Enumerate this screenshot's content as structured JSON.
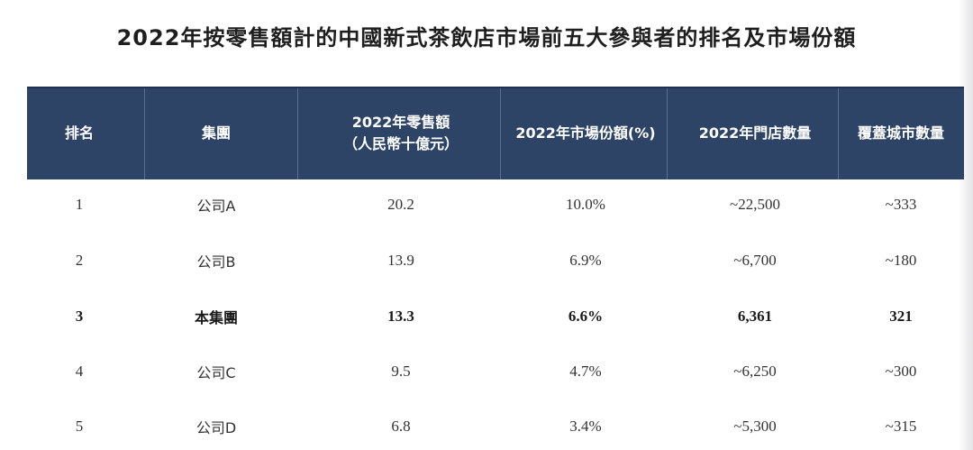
{
  "title": "2022年按零售額計的中國新式茶飲店市場前五大參與者的排名及市場份額",
  "table": {
    "header": [
      {
        "lines": [
          "排名"
        ]
      },
      {
        "lines": [
          "集團"
        ]
      },
      {
        "lines": [
          "2022年零售額",
          "（人民幣十億元）"
        ]
      },
      {
        "lines": [
          "2022年市場份額(%)"
        ]
      },
      {
        "lines": [
          "2022年門店數量"
        ]
      },
      {
        "lines": [
          "覆蓋城市數量"
        ]
      }
    ],
    "rows": [
      {
        "cells": [
          "1",
          "公司A",
          "20.2",
          "10.0%",
          "~22,500",
          "~333"
        ],
        "bold": false
      },
      {
        "cells": [
          "2",
          "公司B",
          "13.9",
          "6.9%",
          "~6,700",
          "~180"
        ],
        "bold": false
      },
      {
        "cells": [
          "3",
          "本集團",
          "13.3",
          "6.6%",
          "6,361",
          "321"
        ],
        "bold": true
      },
      {
        "cells": [
          "4",
          "公司C",
          "9.5",
          "4.7%",
          "~6,250",
          "~300"
        ],
        "bold": false
      },
      {
        "cells": [
          "5",
          "公司D",
          "6.8",
          "3.4%",
          "~5,300",
          "~315"
        ],
        "bold": false
      }
    ]
  }
}
